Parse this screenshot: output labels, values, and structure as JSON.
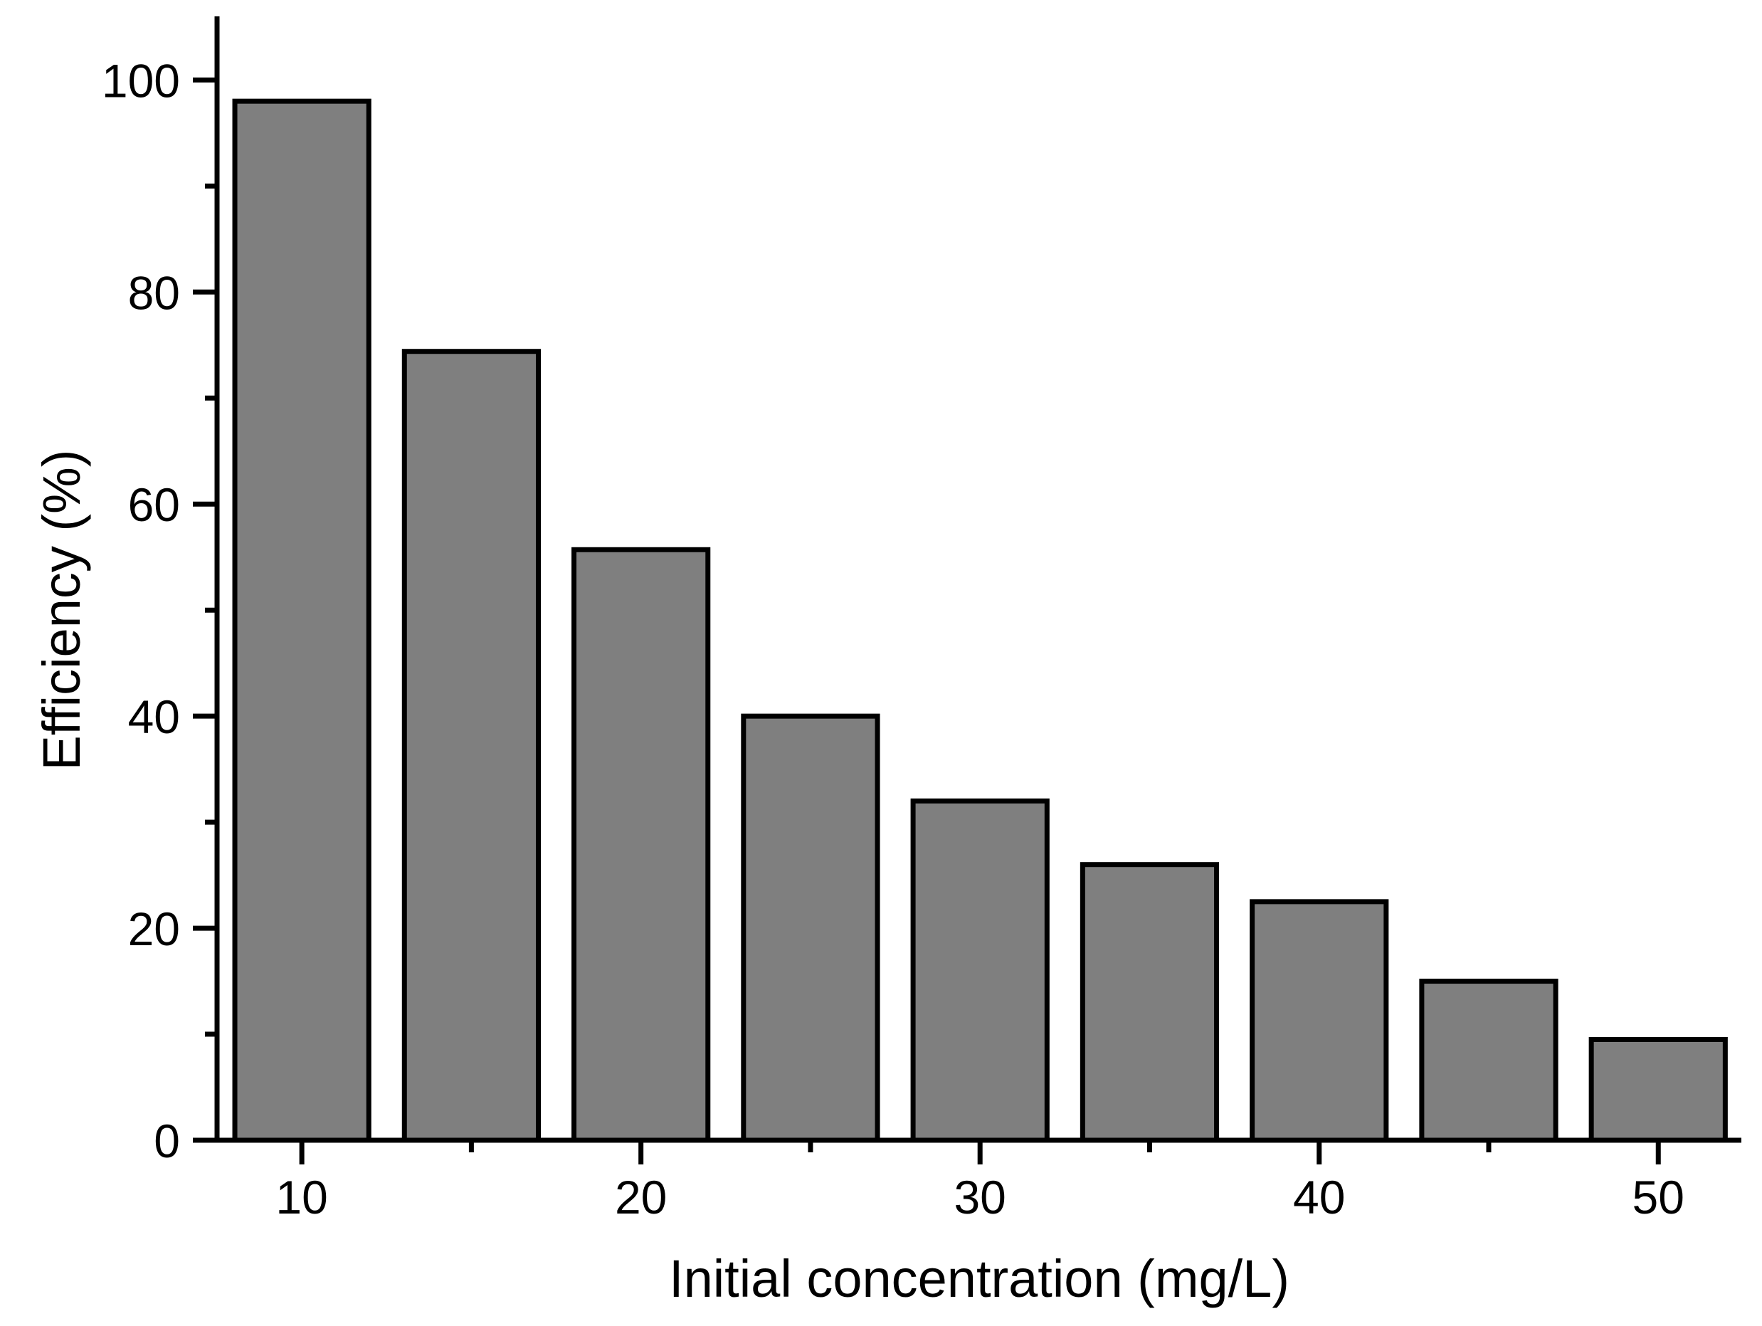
{
  "chart_data": {
    "type": "bar",
    "title": "",
    "xlabel": "Initial concentration (mg/L)",
    "ylabel": "Efficiency (%)",
    "x": [
      10,
      15,
      20,
      25,
      30,
      35,
      40,
      45,
      50
    ],
    "values": [
      98,
      74.4,
      55.7,
      40,
      32,
      26,
      22.5,
      15,
      9.5
    ],
    "series_name": "Efficiency",
    "bar_width_units": 3.95,
    "xlim": [
      7.5,
      52.45
    ],
    "ylim": [
      0,
      106
    ],
    "x_major_ticks": [
      10,
      20,
      30,
      40,
      50
    ],
    "x_minor_ticks": [
      15,
      25,
      35,
      45
    ],
    "y_major_ticks": [
      0,
      20,
      40,
      60,
      80,
      100
    ],
    "y_minor_ticks": [
      10,
      30,
      50,
      70,
      90
    ],
    "x_tick_labels": [
      "10",
      "20",
      "30",
      "40",
      "50"
    ],
    "y_tick_labels": [
      "0",
      "20",
      "40",
      "60",
      "80",
      "100"
    ],
    "grid": false,
    "legend_position": "none",
    "colors": {
      "bar_fill": "#7f7f7f",
      "bar_stroke": "#000000",
      "axis": "#000000",
      "background": "#ffffff"
    }
  }
}
